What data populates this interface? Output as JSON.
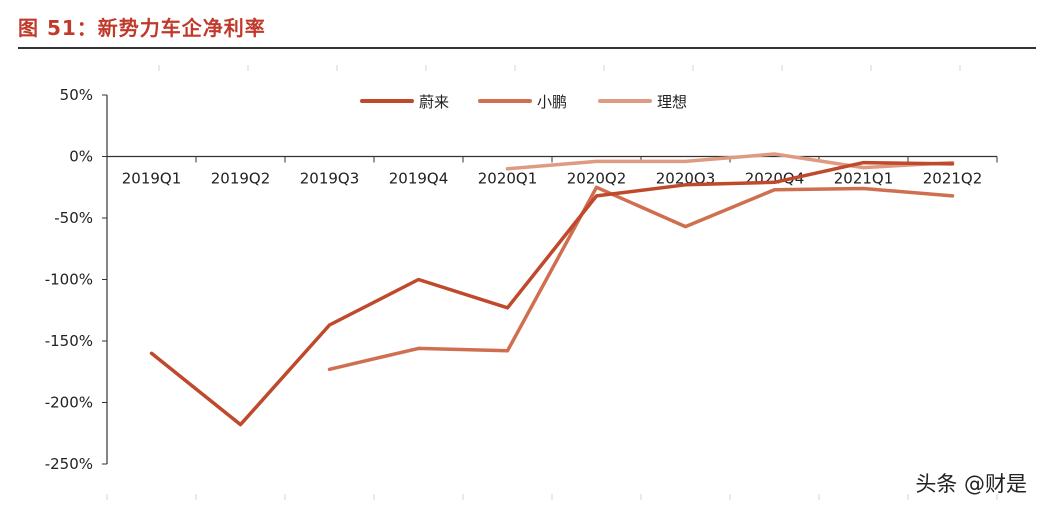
{
  "header": {
    "figure_title": "图 51：新势力车企净利率"
  },
  "watermark": "头条 @财是",
  "chart_data": {
    "type": "line",
    "categories": [
      "2019Q1",
      "2019Q2",
      "2019Q3",
      "2019Q4",
      "2020Q1",
      "2020Q2",
      "2020Q3",
      "2020Q4",
      "2021Q1",
      "2021Q2"
    ],
    "ylim": [
      -250,
      50
    ],
    "yticks": [
      50,
      0,
      -50,
      -100,
      -150,
      -200,
      -250
    ],
    "ytick_labels": [
      "50%",
      "0%",
      "-50%",
      "-100%",
      "-150%",
      "-200%",
      "-250%"
    ],
    "legend_position": "top-center",
    "series": [
      {
        "name": "蔚来",
        "color": "#c0492b",
        "values": [
          -160,
          -218,
          -137,
          -100,
          -123,
          -32,
          -23,
          -21,
          -5,
          -6
        ]
      },
      {
        "name": "小鹏",
        "color": "#cf6f50",
        "values": [
          null,
          null,
          -173,
          -156,
          -158,
          -25,
          -57,
          -27,
          -26,
          -32
        ]
      },
      {
        "name": "理想",
        "color": "#df9a82",
        "values": [
          null,
          null,
          null,
          null,
          -10,
          -4,
          -4,
          2,
          -9,
          -5
        ]
      }
    ]
  }
}
